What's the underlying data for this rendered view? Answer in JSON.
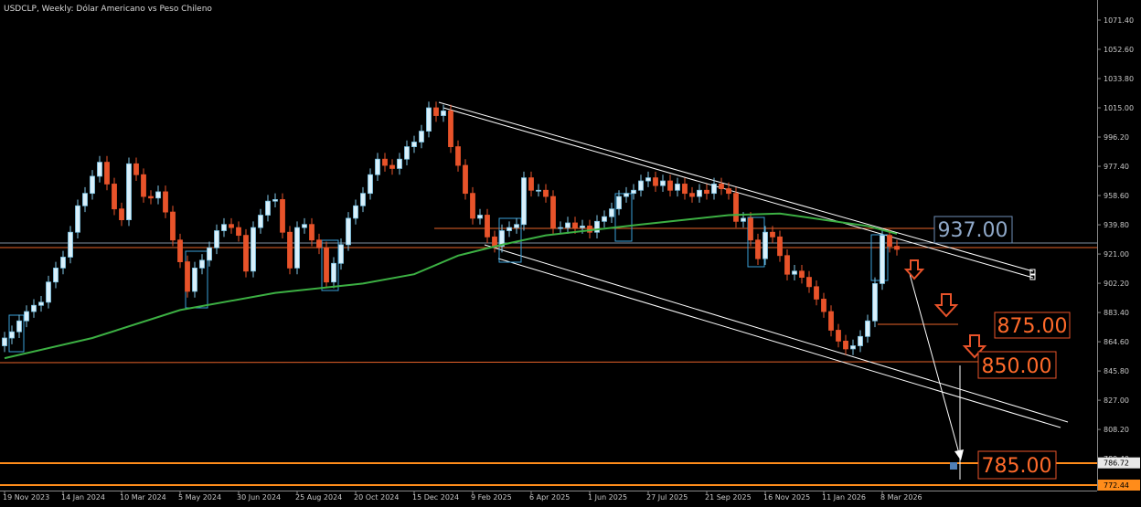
{
  "chart_data": {
    "type": "candlestick",
    "title": "USDCLP, Weekly:  Dólar Americano vs Peso Chileno",
    "bull_color": "#d9f0fb",
    "bull_edge": "#7fc6e6",
    "bear_color": "#e8532a",
    "ohlc": {
      "open": [
        862,
        867,
        871,
        878,
        884,
        888,
        890,
        903,
        912,
        919,
        935,
        952,
        960,
        971,
        980,
        966,
        950,
        943,
        979,
        972,
        958,
        957,
        961,
        948,
        930,
        916,
        897,
        912,
        917,
        925,
        936,
        940,
        938,
        933,
        910,
        938,
        946,
        955,
        956,
        935,
        912,
        938,
        940,
        930,
        925,
        903,
        915,
        927,
        944,
        952,
        960,
        972,
        982,
        978,
        976,
        982,
        990,
        993,
        1000,
        1015,
        1010,
        1013,
        990,
        978,
        960,
        944,
        946,
        932,
        926,
        936,
        938,
        940,
        970,
        962,
        962,
        958,
        938,
        938,
        941,
        938,
        939,
        935,
        942,
        945,
        950,
        958,
        960,
        962,
        968,
        970,
        965,
        968,
        962,
        966,
        960,
        958,
        962,
        960,
        966,
        963,
        960,
        942,
        944,
        930,
        918,
        935,
        932,
        920,
        908,
        910,
        906,
        900,
        892,
        884,
        872,
        865,
        860,
        862,
        868,
        878,
        902,
        933,
        926
      ],
      "high": [
        871,
        875,
        882,
        888,
        892,
        894,
        907,
        916,
        923,
        939,
        956,
        964,
        975,
        984,
        984,
        970,
        954,
        983,
        983,
        976,
        962,
        965,
        965,
        952,
        934,
        920,
        916,
        921,
        929,
        940,
        944,
        944,
        942,
        937,
        942,
        950,
        959,
        960,
        960,
        939,
        942,
        944,
        944,
        934,
        929,
        919,
        931,
        948,
        956,
        964,
        976,
        986,
        986,
        982,
        986,
        994,
        997,
        1004,
        1019,
        1019,
        1017,
        1017,
        994,
        982,
        964,
        950,
        950,
        936,
        940,
        942,
        944,
        974,
        974,
        966,
        966,
        962,
        942,
        945,
        945,
        943,
        943,
        946,
        949,
        954,
        962,
        964,
        966,
        972,
        974,
        974,
        972,
        972,
        970,
        970,
        964,
        966,
        966,
        970,
        970,
        967,
        964,
        948,
        948,
        934,
        939,
        939,
        936,
        924,
        914,
        914,
        910,
        904,
        896,
        888,
        876,
        869,
        866,
        872,
        882,
        906,
        937,
        937,
        930
      ],
      "low": [
        858,
        863,
        867,
        874,
        880,
        884,
        886,
        899,
        908,
        915,
        931,
        948,
        956,
        967,
        962,
        946,
        939,
        939,
        968,
        954,
        953,
        953,
        944,
        926,
        912,
        893,
        893,
        908,
        913,
        921,
        932,
        934,
        929,
        906,
        906,
        934,
        942,
        951,
        931,
        908,
        908,
        934,
        926,
        921,
        899,
        899,
        911,
        923,
        940,
        948,
        956,
        968,
        974,
        972,
        972,
        978,
        986,
        989,
        996,
        1006,
        1006,
        986,
        974,
        956,
        940,
        940,
        928,
        922,
        922,
        932,
        934,
        936,
        958,
        958,
        954,
        934,
        934,
        934,
        934,
        934,
        931,
        931,
        938,
        941,
        946,
        954,
        956,
        958,
        964,
        961,
        961,
        958,
        958,
        956,
        954,
        954,
        956,
        956,
        959,
        956,
        938,
        938,
        926,
        914,
        914,
        928,
        916,
        904,
        904,
        902,
        896,
        888,
        880,
        868,
        861,
        856,
        856,
        858,
        864,
        874,
        898,
        922,
        920
      ],
      "close": [
        867,
        871,
        878,
        884,
        888,
        890,
        903,
        912,
        919,
        935,
        952,
        960,
        971,
        980,
        966,
        950,
        943,
        979,
        972,
        958,
        957,
        961,
        948,
        930,
        916,
        897,
        912,
        917,
        925,
        936,
        940,
        938,
        933,
        910,
        938,
        946,
        955,
        956,
        935,
        912,
        938,
        940,
        930,
        925,
        903,
        915,
        927,
        944,
        952,
        960,
        972,
        982,
        978,
        976,
        982,
        990,
        993,
        1000,
        1015,
        1010,
        1013,
        990,
        978,
        960,
        944,
        946,
        932,
        926,
        936,
        938,
        940,
        970,
        962,
        962,
        958,
        938,
        938,
        941,
        938,
        939,
        935,
        942,
        945,
        950,
        958,
        960,
        962,
        968,
        970,
        965,
        968,
        962,
        966,
        960,
        958,
        962,
        960,
        966,
        963,
        960,
        942,
        944,
        930,
        918,
        935,
        932,
        920,
        908,
        910,
        906,
        900,
        892,
        884,
        872,
        865,
        860,
        862,
        868,
        878,
        902,
        933,
        926,
        924
      ]
    },
    "ma": {
      "color": "#3cb043",
      "x": [
        0,
        12,
        24,
        37,
        49,
        56,
        62,
        68,
        74,
        87,
        93,
        99,
        106,
        112,
        118,
        122
      ],
      "values": [
        854,
        867,
        885,
        896,
        902,
        908,
        920,
        927,
        933,
        940,
        943,
        946,
        947,
        943,
        939,
        934
      ]
    },
    "ylim": [
      768.92,
      1084.32
    ],
    "yticks": [
      {
        "value": 1071.4,
        "label": "1071.40"
      },
      {
        "value": 1052.6,
        "label": "1052.60"
      },
      {
        "value": 1033.8,
        "label": "1033.80"
      },
      {
        "value": 1015,
        "label": "1015.00"
      },
      {
        "value": 996.2,
        "label": "996.20"
      },
      {
        "value": 977.4,
        "label": "977.40"
      },
      {
        "value": 958.6,
        "label": "958.60"
      },
      {
        "value": 939.8,
        "label": "939.80"
      },
      {
        "value": 921,
        "label": "921.00"
      },
      {
        "value": 902.2,
        "label": "902.20"
      },
      {
        "value": 883.4,
        "label": "883.40"
      },
      {
        "value": 864.6,
        "label": "864.60"
      },
      {
        "value": 845.8,
        "label": "845.80"
      },
      {
        "value": 827,
        "label": "827.00"
      },
      {
        "value": 808.2,
        "label": "808.20"
      },
      {
        "value": 789.4,
        "label": "789.40"
      }
    ],
    "price_labels": [
      {
        "value": 786.72,
        "label": "786.72"
      },
      {
        "value": 772.44,
        "label": "772.44"
      }
    ],
    "xticks": [
      {
        "value": 0,
        "label": "19 Nov 2023"
      },
      {
        "value": 8,
        "label": "14 Jan 2024"
      },
      {
        "value": 16,
        "label": "10 Mar 2024"
      },
      {
        "value": 24,
        "label": "5 May 2024"
      },
      {
        "value": 32,
        "label": "30 Jun 2024"
      },
      {
        "value": 40,
        "label": "25 Aug 2024"
      },
      {
        "value": 48,
        "label": "20 Oct 2024"
      },
      {
        "value": 56,
        "label": "15 Dec 2024"
      },
      {
        "value": 64,
        "label": "9 Feb 2025"
      },
      {
        "value": 72,
        "label": "6 Apr 2025"
      },
      {
        "value": 80,
        "label": "1 Jun 2025"
      },
      {
        "value": 88,
        "label": "27 Jul 2025"
      },
      {
        "value": 96,
        "label": "21 Sep 2025"
      },
      {
        "value": 104,
        "label": "16 Nov 2025"
      },
      {
        "value": 112,
        "label": "11 Jan 2026"
      },
      {
        "value": 120,
        "label": "8 Mar 2026"
      }
    ],
    "annotations": [
      "937.00",
      "875.00",
      "850.00",
      "785.00"
    ]
  }
}
